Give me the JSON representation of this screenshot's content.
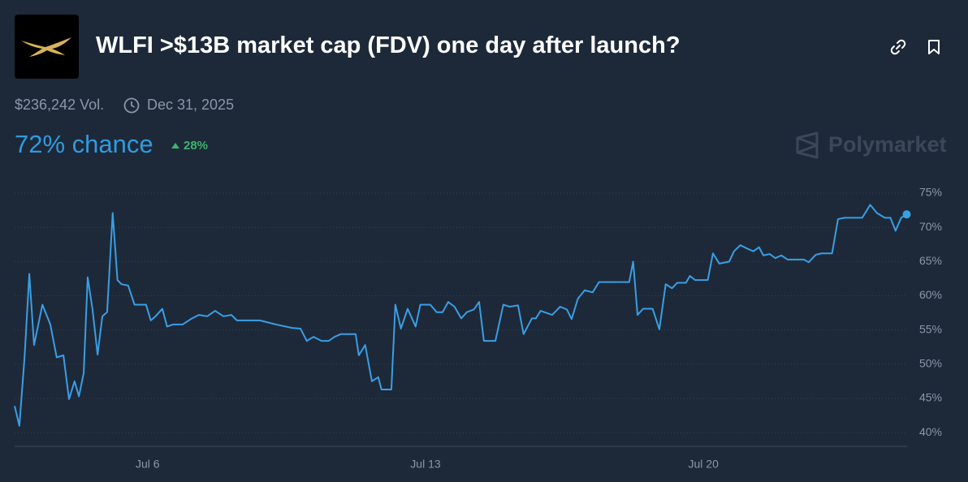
{
  "header": {
    "title": "WLFI >$13B market cap (FDV) one day after launch?",
    "volume": "$236,242 Vol.",
    "end_date": "Dec 31, 2025",
    "chance": "72% chance",
    "change": "28%",
    "brand": "Polymarket"
  },
  "chart_data": {
    "type": "line",
    "color": "#3a9ee4",
    "grid": true,
    "x": [
      2.65,
      2.77,
      2.9,
      3.02,
      3.14,
      3.35,
      3.55,
      3.71,
      3.88,
      4.02,
      4.16,
      4.27,
      4.39,
      4.49,
      4.61,
      4.74,
      4.86,
      4.98,
      5.12,
      5.24,
      5.34,
      5.51,
      5.67,
      5.96,
      6.08,
      6.2,
      6.37,
      6.49,
      6.64,
      6.88,
      7.09,
      7.29,
      7.5,
      7.7,
      7.91,
      8.11,
      8.25,
      8.83,
      9.03,
      9.24,
      9.64,
      9.85,
      10.01,
      10.18,
      10.38,
      10.56,
      10.71,
      10.87,
      11.24,
      11.32,
      11.48,
      11.65,
      11.81,
      11.89,
      12.14,
      12.24,
      12.38,
      12.55,
      12.75,
      12.87,
      13.12,
      13.28,
      13.43,
      13.57,
      13.73,
      13.9,
      14.04,
      14.22,
      14.35,
      14.47,
      14.76,
      14.96,
      15.12,
      15.33,
      15.47,
      15.68,
      15.78,
      15.9,
      16.19,
      16.39,
      16.56,
      16.68,
      16.84,
      17.01,
      17.21,
      17.37,
      18.13,
      18.23,
      18.34,
      18.48,
      18.72,
      18.89,
      19.05,
      19.21,
      19.34,
      19.56,
      19.66,
      19.79,
      20.11,
      20.24,
      20.4,
      20.65,
      20.77,
      20.93,
      21.1,
      21.26,
      21.4,
      21.51,
      21.67,
      21.81,
      21.96,
      22.12,
      22.53,
      22.65,
      22.83,
      22.98,
      23.24,
      23.39,
      23.55,
      24.0,
      24.2,
      24.37,
      24.57,
      24.71,
      24.84,
      24.98,
      25.12
    ],
    "values": [
      43.9,
      41.0,
      51.0,
      63.2,
      52.8,
      58.7,
      55.8,
      51.0,
      51.3,
      44.9,
      47.5,
      45.3,
      48.7,
      62.7,
      58.1,
      51.4,
      57.0,
      57.6,
      72.1,
      62.3,
      61.7,
      61.5,
      58.7,
      58.7,
      56.4,
      57.0,
      58.1,
      55.5,
      55.8,
      55.8,
      56.6,
      57.2,
      57.0,
      57.8,
      57.0,
      57.2,
      56.4,
      56.4,
      56.1,
      55.8,
      55.3,
      55.2,
      53.4,
      54.0,
      53.4,
      53.4,
      54.0,
      54.4,
      54.4,
      51.3,
      52.8,
      47.5,
      48.1,
      46.3,
      46.3,
      58.7,
      55.2,
      58.1,
      55.5,
      58.7,
      58.7,
      57.6,
      57.6,
      59.1,
      58.4,
      56.7,
      57.6,
      58.0,
      59.1,
      53.4,
      53.4,
      58.7,
      58.4,
      58.6,
      54.4,
      56.7,
      56.7,
      57.8,
      57.2,
      58.4,
      58.0,
      56.6,
      59.6,
      60.8,
      60.5,
      62.0,
      62.0,
      65.0,
      57.2,
      58.1,
      58.1,
      55.1,
      61.7,
      61.1,
      61.9,
      61.9,
      62.9,
      62.3,
      62.3,
      66.2,
      64.7,
      65.0,
      66.5,
      67.4,
      66.9,
      66.5,
      67.1,
      65.9,
      66.1,
      65.5,
      65.9,
      65.3,
      65.3,
      64.9,
      66.0,
      66.2,
      66.2,
      71.2,
      71.4,
      71.4,
      73.3,
      72.1,
      71.4,
      71.4,
      69.5,
      71.4,
      71.9
    ],
    "xlim": [
      2.65,
      25.13
    ],
    "xticks": [
      {
        "value": 6,
        "label": "Jul 6"
      },
      {
        "value": 13,
        "label": "Jul 13"
      },
      {
        "value": 20,
        "label": "Jul 20"
      }
    ],
    "ylim": [
      38,
      76
    ],
    "yticks": [
      {
        "value": 40,
        "label": "40%"
      },
      {
        "value": 45,
        "label": "45%"
      },
      {
        "value": 50,
        "label": "50%"
      },
      {
        "value": 55,
        "label": "55%"
      },
      {
        "value": 60,
        "label": "60%"
      },
      {
        "value": 65,
        "label": "65%"
      },
      {
        "value": 70,
        "label": "70%"
      },
      {
        "value": 75,
        "label": "75%"
      }
    ]
  }
}
